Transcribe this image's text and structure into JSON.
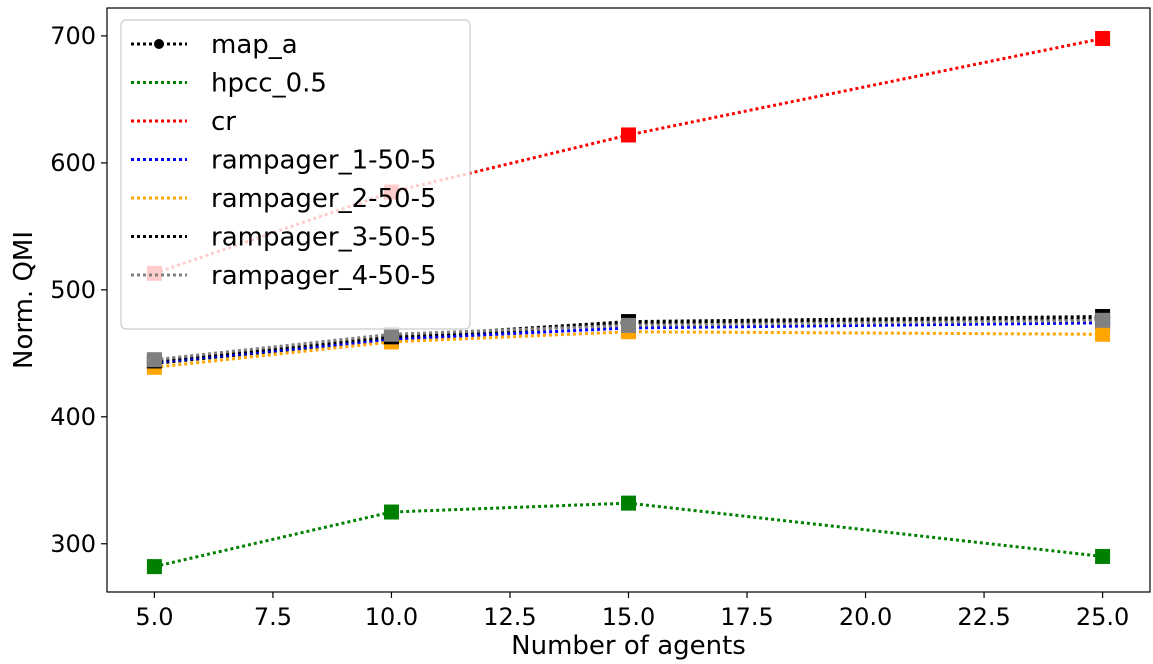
{
  "chart_data": {
    "type": "line",
    "xlabel": "Number of agents",
    "ylabel": "Norm. QMI",
    "xlim": [
      4.0,
      26.0
    ],
    "ylim": [
      262,
      722
    ],
    "xticks": [
      "5.0",
      "7.5",
      "10.0",
      "12.5",
      "15.0",
      "17.5",
      "20.0",
      "22.5",
      "25.0"
    ],
    "xtick_values": [
      5.0,
      7.5,
      10.0,
      12.5,
      15.0,
      17.5,
      20.0,
      22.5,
      25.0
    ],
    "yticks": [
      "300",
      "400",
      "500",
      "600",
      "700"
    ],
    "ytick_values": [
      300,
      400,
      500,
      600,
      700
    ],
    "x": [
      5,
      10,
      15,
      25
    ],
    "legend_position": "upper-left",
    "grid": false,
    "series": [
      {
        "name": "map_a",
        "color": "#000000",
        "marker": "circle",
        "values": [
          442,
          461,
          474,
          477
        ]
      },
      {
        "name": "hpcc_0.5",
        "color": "#008000",
        "marker": "square",
        "values": [
          282,
          325,
          332,
          290
        ]
      },
      {
        "name": "cr",
        "color": "#ff0000",
        "marker": "square",
        "values": [
          513,
          577,
          622,
          698
        ]
      },
      {
        "name": "rampager_1-50-5",
        "color": "#0000ff",
        "marker": "square",
        "values": [
          443,
          461,
          470,
          474
        ]
      },
      {
        "name": "rampager_2-50-5",
        "color": "#ffa500",
        "marker": "square",
        "values": [
          439,
          459,
          467,
          465
        ]
      },
      {
        "name": "rampager_3-50-5",
        "color": "#000000",
        "marker": "square",
        "values": [
          444,
          463,
          475,
          479
        ]
      },
      {
        "name": "rampager_4-50-5",
        "color": "#808080",
        "marker": "square",
        "values": [
          445,
          465,
          472,
          476
        ]
      }
    ]
  }
}
